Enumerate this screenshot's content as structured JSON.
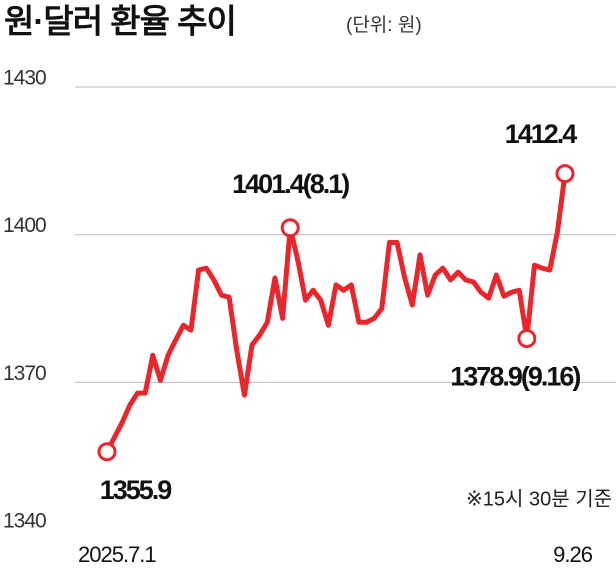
{
  "chart_data": {
    "type": "line",
    "title": "원·달러 환율 추이",
    "subtitle": "(단위: 원)",
    "note": "※15시 30분 기준",
    "categories": [
      "2025.7.1",
      null,
      null,
      null,
      null,
      null,
      null,
      null,
      null,
      null,
      null,
      null,
      null,
      null,
      null,
      null,
      null,
      null,
      null,
      null,
      null,
      null,
      null,
      null,
      null,
      null,
      null,
      null,
      null,
      null,
      null,
      null,
      null,
      null,
      null,
      null,
      null,
      null,
      null,
      null,
      null,
      null,
      null,
      null,
      null,
      null,
      null,
      null,
      null,
      null,
      null,
      null,
      null,
      null,
      null,
      null,
      null,
      null,
      null,
      null,
      "9.26"
    ],
    "series": [
      {
        "color": "#e8262b",
        "values": [
          1355.9,
          1358.9,
          1361.9,
          1365.4,
          1367.8,
          1367.8,
          1375.5,
          1370.4,
          1375.5,
          1378.6,
          1381.6,
          1380.6,
          1392.8,
          1393.2,
          1390.8,
          1387.7,
          1387.3,
          1376.5,
          1367.4,
          1377.6,
          1379.6,
          1382.2,
          1391.2,
          1383.0,
          1401.4,
          1394.8,
          1386.7,
          1388.7,
          1386.7,
          1381.6,
          1389.8,
          1388.7,
          1389.8,
          1382.2,
          1382.2,
          1383.0,
          1385.0,
          1398.4,
          1398.4,
          1391.2,
          1385.7,
          1395.9,
          1387.7,
          1391.8,
          1393.2,
          1390.8,
          1392.4,
          1390.8,
          1390.4,
          1388.3,
          1387.1,
          1391.8,
          1387.5,
          1388.3,
          1388.7,
          1378.9,
          1393.8,
          1393.2,
          1392.8,
          1400.5,
          1412.4
        ],
        "value_labels": [
          "1355.9",
          null,
          null,
          null,
          null,
          null,
          null,
          null,
          null,
          null,
          null,
          null,
          null,
          null,
          null,
          null,
          null,
          null,
          null,
          null,
          null,
          null,
          null,
          null,
          "1401.4(8.1)",
          null,
          null,
          null,
          null,
          null,
          null,
          null,
          null,
          null,
          null,
          null,
          null,
          null,
          null,
          null,
          null,
          null,
          null,
          null,
          null,
          null,
          null,
          null,
          null,
          null,
          null,
          null,
          null,
          null,
          null,
          "1378.9(9.16)",
          null,
          null,
          null,
          null,
          "1412.4"
        ]
      }
    ],
    "ylim": [
      1340,
      1430
    ],
    "yticks": [
      1340,
      1370,
      1400,
      1430
    ],
    "grid": true
  }
}
